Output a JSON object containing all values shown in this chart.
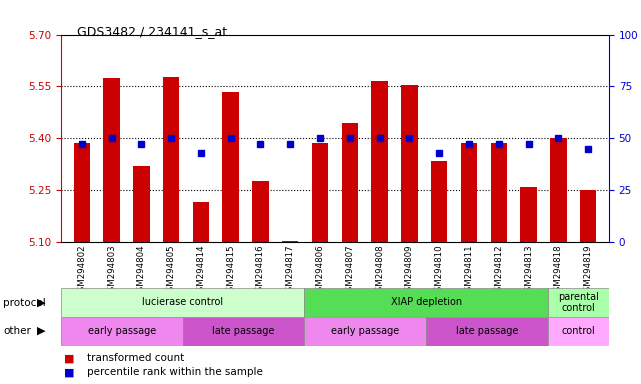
{
  "title": "GDS3482 / 234141_s_at",
  "samples": [
    "GSM294802",
    "GSM294803",
    "GSM294804",
    "GSM294805",
    "GSM294814",
    "GSM294815",
    "GSM294816",
    "GSM294817",
    "GSM294806",
    "GSM294807",
    "GSM294808",
    "GSM294809",
    "GSM294810",
    "GSM294811",
    "GSM294812",
    "GSM294813",
    "GSM294818",
    "GSM294819"
  ],
  "transformed_count": [
    5.385,
    5.575,
    5.32,
    5.578,
    5.215,
    5.535,
    5.275,
    5.103,
    5.385,
    5.445,
    5.565,
    5.555,
    5.335,
    5.385,
    5.385,
    5.26,
    5.4,
    5.25
  ],
  "percentile_rank": [
    47,
    50,
    47,
    50,
    43,
    50,
    47,
    47,
    50,
    50,
    50,
    50,
    43,
    47,
    47,
    47,
    50,
    45
  ],
  "ylim_left": [
    5.1,
    5.7
  ],
  "ylim_right": [
    0,
    100
  ],
  "yticks_left": [
    5.1,
    5.25,
    5.4,
    5.55,
    5.7
  ],
  "yticks_right": [
    0,
    25,
    50,
    75,
    100
  ],
  "bar_color": "#cc0000",
  "dot_color": "#0000cc",
  "bar_width": 0.55,
  "protocol_groups": [
    {
      "label": "lucierase control",
      "start": 0,
      "end": 8,
      "color": "#ccffcc"
    },
    {
      "label": "XIAP depletion",
      "start": 8,
      "end": 16,
      "color": "#55dd55"
    },
    {
      "label": "parental\ncontrol",
      "start": 16,
      "end": 18,
      "color": "#aaffaa"
    }
  ],
  "other_groups": [
    {
      "label": "early passage",
      "start": 0,
      "end": 4,
      "color": "#ee88ee"
    },
    {
      "label": "late passage",
      "start": 4,
      "end": 8,
      "color": "#cc55cc"
    },
    {
      "label": "early passage",
      "start": 8,
      "end": 12,
      "color": "#ee88ee"
    },
    {
      "label": "late passage",
      "start": 12,
      "end": 16,
      "color": "#cc55cc"
    },
    {
      "label": "control",
      "start": 16,
      "end": 18,
      "color": "#ffaaff"
    }
  ],
  "protocol_label": "protocol",
  "other_label": "other",
  "legend_items": [
    {
      "label": "transformed count",
      "color": "#cc0000"
    },
    {
      "label": "percentile rank within the sample",
      "color": "#0000cc"
    }
  ],
  "left_axis_color": "#cc0000",
  "right_axis_color": "#0000cc",
  "plot_bg": "#ffffff",
  "xticklabel_bg": "#cccccc"
}
